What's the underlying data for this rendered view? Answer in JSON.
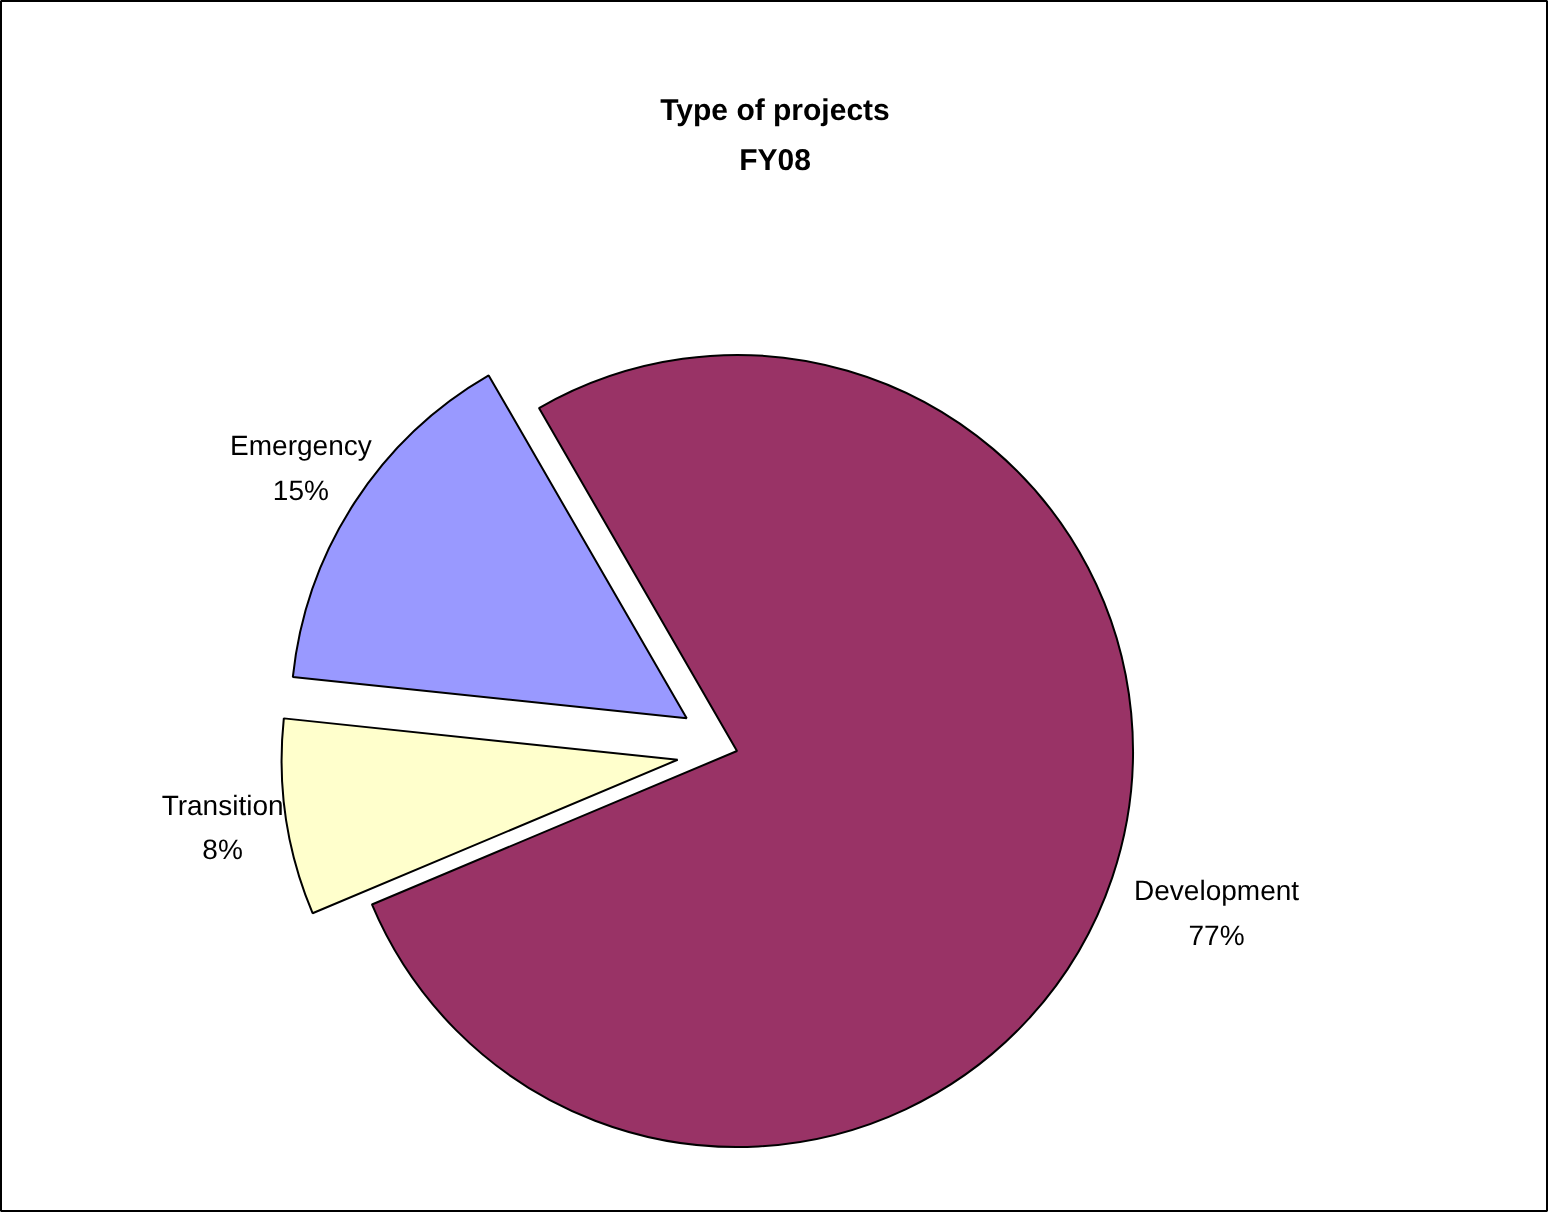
{
  "chart_data": {
    "type": "pie",
    "title": "Type of projects",
    "subtitle": "FY08",
    "categories": [
      "Development",
      "Transition",
      "Emergency"
    ],
    "values": [
      77,
      8,
      15
    ],
    "colors": [
      "#993366",
      "#ffffcc",
      "#9999ff"
    ],
    "value_labels": [
      "77%",
      "8%",
      "15%"
    ]
  }
}
